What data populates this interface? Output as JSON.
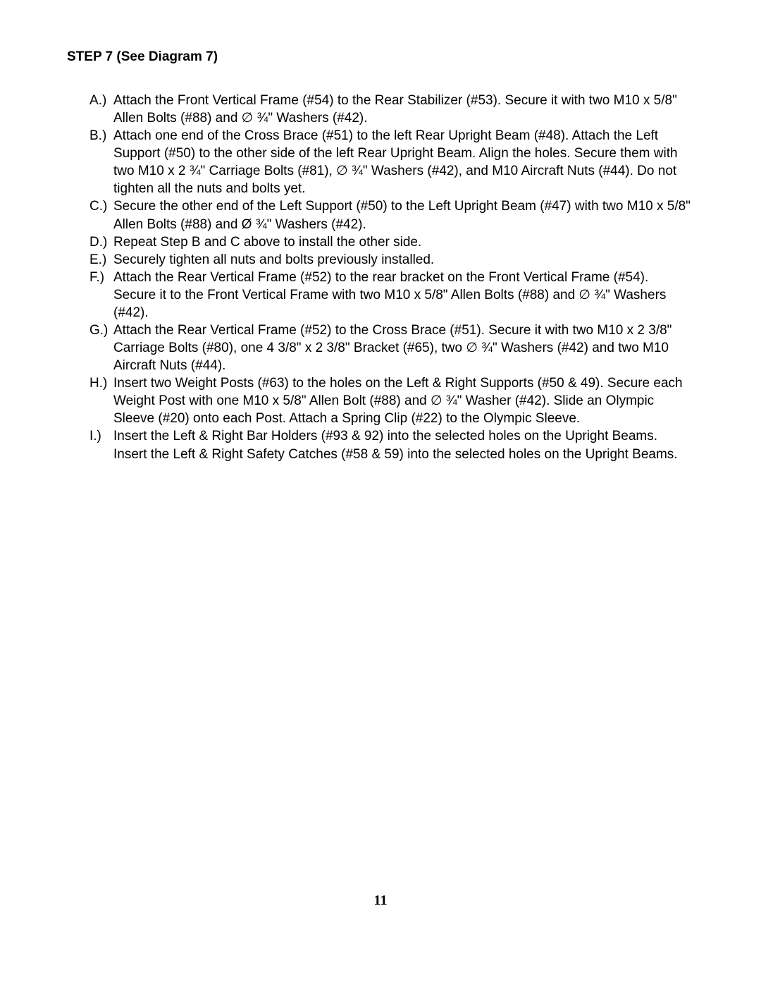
{
  "heading": "STEP 7 (See Diagram 7)",
  "items": [
    {
      "label": "A.)",
      "text": "Attach the Front Vertical Frame (#54) to the Rear Stabilizer (#53). Secure it with two M10 x 5/8\" Allen Bolts (#88) and ∅ ¾\" Washers (#42)."
    },
    {
      "label": "B.)",
      "text": "Attach one end of the Cross Brace (#51) to the left Rear Upright Beam (#48). Attach the Left Support (#50) to the other side of the left Rear Upright Beam. Align the holes. Secure them with two M10 x 2 ¾\" Carriage Bolts (#81), ∅ ¾\" Washers (#42), and M10 Aircraft Nuts (#44). Do not tighten all the nuts and bolts yet."
    },
    {
      "label": "C.)",
      "text": "Secure the other end of the Left Support (#50) to the Left Upright Beam (#47) with two M10 x 5/8\" Allen Bolts (#88) and Ø ¾\" Washers (#42)."
    },
    {
      "label": "D.)",
      "text": "Repeat Step B and C above to install the other side."
    },
    {
      "label": "E.)",
      "text": "Securely tighten all nuts and bolts previously installed."
    },
    {
      "label": "F.)",
      "text": "Attach the Rear Vertical Frame (#52) to the rear bracket on the Front Vertical Frame (#54).  Secure it to the Front Vertical Frame with two M10 x 5/8\" Allen Bolts (#88) and ∅ ¾\" Washers (#42)."
    },
    {
      "label": "G.)",
      "text": "Attach the Rear Vertical Frame (#52) to the Cross Brace (#51). Secure it with two M10 x 2 3/8\" Carriage Bolts (#80), one 4 3/8\" x 2 3/8\" Bracket (#65), two ∅ ¾\" Washers (#42) and two M10 Aircraft Nuts (#44)."
    },
    {
      "label": "H.)",
      "text": "Insert two Weight Posts (#63) to the holes on the Left & Right Supports (#50 & 49). Secure each Weight Post with one M10 x 5/8\" Allen Bolt (#88) and ∅ ¾\" Washer (#42). Slide an Olympic Sleeve (#20) onto each Post. Attach a Spring Clip (#22) to the Olympic Sleeve."
    },
    {
      "label": "I.)",
      "text": "Insert the Left & Right Bar Holders (#93 & 92) into the selected holes on the Upright Beams.  Insert the Left & Right Safety Catches (#58 & 59) into the selected holes on the Upright Beams."
    }
  ],
  "pageNumber": "11"
}
